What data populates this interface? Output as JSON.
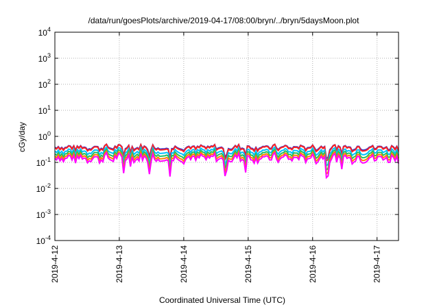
{
  "chart_data": {
    "type": "line",
    "title": "/data/run/goesPlots/archive/2019-04-17/08:00/bryn/../bryn/5daysMoon.plot",
    "xlabel": "Coordinated Universal Time (UTC)",
    "ylabel": "cGy/day",
    "yscale": "log",
    "ylim": [
      0.0001,
      10000
    ],
    "y_ticks": [
      {
        "base": "10",
        "exp": "-4"
      },
      {
        "base": "10",
        "exp": "-3"
      },
      {
        "base": "10",
        "exp": "-2"
      },
      {
        "base": "10",
        "exp": "-1"
      },
      {
        "base": "10",
        "exp": "0"
      },
      {
        "base": "10",
        "exp": "1"
      },
      {
        "base": "10",
        "exp": "2"
      },
      {
        "base": "10",
        "exp": "3"
      },
      {
        "base": "10",
        "exp": "4"
      }
    ],
    "x_ticks": [
      "2019-4-12",
      "2019-4-13",
      "2019-4-14",
      "2019-4-15",
      "2019-4-16",
      "2019-4-17"
    ],
    "xlim": [
      "2019-04-12 00:00",
      "2019-04-17 08:00"
    ],
    "grid": true,
    "legend": "none",
    "series": [
      {
        "color": "#3333cc",
        "level": 0.38
      },
      {
        "color": "#ff2020",
        "level": 0.36
      },
      {
        "color": "#00c0ff",
        "level": 0.27
      },
      {
        "color": "#20c060",
        "level": 0.215
      },
      {
        "color": "#ff8000",
        "level": 0.175
      },
      {
        "color": "#ff00ff",
        "level": 0.145
      }
    ]
  }
}
